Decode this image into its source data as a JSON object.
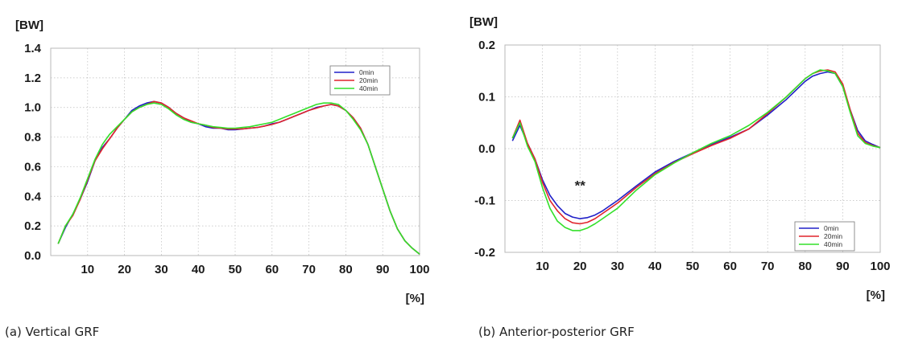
{
  "captions": [
    "(a) Vertical GRF",
    "(b) Anterior-posterior GRF"
  ],
  "colors": {
    "0min": "#2020c8",
    "20min": "#e0242c",
    "40min": "#33e02a"
  },
  "chart_data": [
    {
      "type": "line",
      "title": "",
      "ylabel": "[BW]",
      "xlabel": "[%]",
      "xlim": [
        0,
        100
      ],
      "ylim": [
        0,
        1.4
      ],
      "xticks": [
        10,
        20,
        30,
        40,
        50,
        60,
        70,
        80,
        90,
        100
      ],
      "yticks": [
        0.0,
        0.2,
        0.4,
        0.6,
        0.8,
        1.0,
        1.2,
        1.4
      ],
      "ytick_labels": [
        "0.0",
        "0.2",
        "0.4",
        "0.6",
        "0.8",
        "1.0",
        "1.2",
        "1.4"
      ],
      "grid": true,
      "legend_position": "top-right",
      "series": [
        {
          "name": "0min",
          "x": [
            2,
            4,
            6,
            8,
            10,
            12,
            14,
            16,
            18,
            20,
            22,
            24,
            26,
            28,
            30,
            32,
            34,
            36,
            38,
            40,
            42,
            44,
            46,
            48,
            50,
            52,
            54,
            56,
            58,
            60,
            62,
            64,
            66,
            68,
            70,
            72,
            74,
            76,
            78,
            80,
            82,
            84,
            86,
            88,
            90,
            92,
            94,
            96,
            98,
            100
          ],
          "y": [
            0.08,
            0.19,
            0.28,
            0.38,
            0.5,
            0.64,
            0.73,
            0.79,
            0.86,
            0.92,
            0.98,
            1.01,
            1.03,
            1.04,
            1.03,
            1.0,
            0.96,
            0.93,
            0.9,
            0.89,
            0.87,
            0.86,
            0.86,
            0.85,
            0.85,
            0.855,
            0.86,
            0.865,
            0.875,
            0.89,
            0.9,
            0.92,
            0.94,
            0.96,
            0.98,
            1.0,
            1.01,
            1.02,
            1.01,
            0.98,
            0.93,
            0.86,
            0.75,
            0.6,
            0.45,
            0.3,
            0.18,
            0.1,
            0.05,
            0.01
          ]
        },
        {
          "name": "20min",
          "x": [
            2,
            4,
            6,
            8,
            10,
            12,
            14,
            16,
            18,
            20,
            22,
            24,
            26,
            28,
            30,
            32,
            34,
            36,
            38,
            40,
            42,
            44,
            46,
            48,
            50,
            52,
            54,
            56,
            58,
            60,
            62,
            64,
            66,
            68,
            70,
            72,
            74,
            76,
            78,
            80,
            82,
            84,
            86,
            88,
            90,
            92,
            94,
            96,
            98,
            100
          ],
          "y": [
            0.08,
            0.2,
            0.27,
            0.38,
            0.51,
            0.64,
            0.72,
            0.79,
            0.86,
            0.92,
            0.97,
            1.0,
            1.02,
            1.04,
            1.03,
            1.0,
            0.96,
            0.93,
            0.91,
            0.89,
            0.88,
            0.865,
            0.86,
            0.855,
            0.855,
            0.855,
            0.86,
            0.865,
            0.875,
            0.885,
            0.9,
            0.92,
            0.94,
            0.96,
            0.98,
            0.995,
            1.01,
            1.02,
            1.01,
            0.98,
            0.93,
            0.86,
            0.75,
            0.6,
            0.45,
            0.3,
            0.18,
            0.1,
            0.05,
            0.01
          ]
        },
        {
          "name": "40min",
          "x": [
            2,
            4,
            6,
            8,
            10,
            12,
            14,
            16,
            18,
            20,
            22,
            24,
            26,
            28,
            30,
            32,
            34,
            36,
            38,
            40,
            42,
            44,
            46,
            48,
            50,
            52,
            54,
            56,
            58,
            60,
            62,
            64,
            66,
            68,
            70,
            72,
            74,
            76,
            78,
            80,
            82,
            84,
            86,
            88,
            90,
            92,
            94,
            96,
            98,
            100
          ],
          "y": [
            0.08,
            0.2,
            0.28,
            0.39,
            0.52,
            0.65,
            0.75,
            0.82,
            0.87,
            0.92,
            0.97,
            1.0,
            1.02,
            1.03,
            1.02,
            0.99,
            0.95,
            0.92,
            0.9,
            0.89,
            0.88,
            0.87,
            0.865,
            0.86,
            0.86,
            0.865,
            0.87,
            0.88,
            0.89,
            0.9,
            0.92,
            0.94,
            0.96,
            0.98,
            1.0,
            1.02,
            1.03,
            1.03,
            1.02,
            0.98,
            0.92,
            0.85,
            0.75,
            0.6,
            0.45,
            0.3,
            0.18,
            0.1,
            0.05,
            0.01
          ]
        }
      ]
    },
    {
      "type": "line",
      "title": "",
      "ylabel": "[BW]",
      "xlabel": "[%]",
      "xlim": [
        0,
        100
      ],
      "ylim": [
        -0.2,
        0.2
      ],
      "xticks": [
        10,
        20,
        30,
        40,
        50,
        60,
        70,
        80,
        90,
        100
      ],
      "yticks": [
        -0.2,
        -0.1,
        0.0,
        0.1,
        0.2
      ],
      "ytick_labels": [
        "-0.2",
        "-0.1",
        "0.0",
        "0.1",
        "0.2"
      ],
      "grid": true,
      "legend_position": "bottom-right",
      "annotations": [
        {
          "text": "**",
          "x": 20,
          "y": -0.08
        }
      ],
      "series": [
        {
          "name": "0min",
          "x": [
            2,
            4,
            6,
            8,
            10,
            12,
            14,
            16,
            18,
            20,
            22,
            24,
            26,
            28,
            30,
            35,
            40,
            45,
            50,
            55,
            60,
            65,
            70,
            75,
            80,
            82,
            84,
            86,
            88,
            90,
            92,
            94,
            96,
            98,
            100
          ],
          "y": [
            0.015,
            0.045,
            0.01,
            -0.02,
            -0.06,
            -0.09,
            -0.11,
            -0.125,
            -0.132,
            -0.135,
            -0.133,
            -0.128,
            -0.12,
            -0.11,
            -0.1,
            -0.072,
            -0.045,
            -0.025,
            -0.008,
            0.008,
            0.022,
            0.038,
            0.065,
            0.095,
            0.13,
            0.14,
            0.145,
            0.148,
            0.145,
            0.12,
            0.075,
            0.035,
            0.015,
            0.008,
            0.002
          ]
        },
        {
          "name": "20min",
          "x": [
            2,
            4,
            6,
            8,
            10,
            12,
            14,
            16,
            18,
            20,
            22,
            24,
            26,
            28,
            30,
            35,
            40,
            45,
            50,
            55,
            60,
            65,
            70,
            75,
            80,
            82,
            84,
            86,
            88,
            90,
            92,
            94,
            96,
            98,
            100
          ],
          "y": [
            0.02,
            0.055,
            0.01,
            -0.02,
            -0.065,
            -0.1,
            -0.12,
            -0.135,
            -0.143,
            -0.145,
            -0.142,
            -0.135,
            -0.125,
            -0.115,
            -0.105,
            -0.075,
            -0.048,
            -0.027,
            -0.01,
            0.006,
            0.02,
            0.038,
            0.068,
            0.1,
            0.135,
            0.145,
            0.15,
            0.152,
            0.148,
            0.125,
            0.075,
            0.03,
            0.012,
            0.006,
            0.002
          ]
        },
        {
          "name": "40min",
          "x": [
            2,
            4,
            6,
            8,
            10,
            12,
            14,
            16,
            18,
            20,
            22,
            24,
            26,
            28,
            30,
            35,
            40,
            45,
            50,
            55,
            60,
            65,
            70,
            75,
            80,
            82,
            84,
            86,
            88,
            90,
            92,
            94,
            96,
            98,
            100
          ],
          "y": [
            0.02,
            0.05,
            0.005,
            -0.025,
            -0.075,
            -0.115,
            -0.14,
            -0.152,
            -0.158,
            -0.158,
            -0.153,
            -0.145,
            -0.135,
            -0.125,
            -0.115,
            -0.08,
            -0.05,
            -0.028,
            -0.008,
            0.01,
            0.025,
            0.045,
            0.07,
            0.1,
            0.135,
            0.145,
            0.152,
            0.15,
            0.145,
            0.12,
            0.07,
            0.025,
            0.01,
            0.005,
            0.002
          ]
        }
      ]
    }
  ]
}
